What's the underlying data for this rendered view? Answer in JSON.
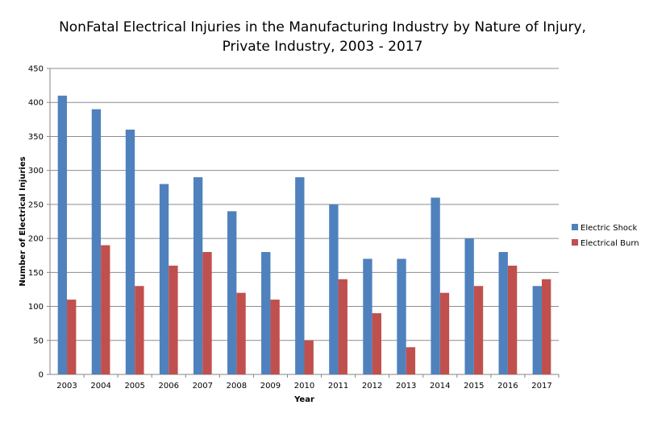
{
  "chart_data": {
    "type": "bar",
    "title": "NonFatal Electrical Injuries in the Manufacturing Industry by Nature of Injury, Private Industry, 2003 - 2017",
    "xlabel": "Year",
    "ylabel": "Number of Electrical Injuries",
    "ylim": [
      0,
      450
    ],
    "yticks": [
      "0",
      "50",
      "100",
      "150",
      "200",
      "250",
      "300",
      "350",
      "400",
      "450"
    ],
    "grid": true,
    "legend_position": "right",
    "categories": [
      "2003",
      "2004",
      "2005",
      "2006",
      "2007",
      "2008",
      "2009",
      "2010",
      "2011",
      "2012",
      "2013",
      "2014",
      "2015",
      "2016",
      "2017"
    ],
    "series": [
      {
        "name": "Electric Shock",
        "color": "#4f81bd",
        "values": [
          410,
          390,
          360,
          280,
          290,
          240,
          180,
          290,
          250,
          170,
          170,
          260,
          200,
          180,
          130
        ]
      },
      {
        "name": "Electrical Burn",
        "color": "#c0504d",
        "values": [
          110,
          190,
          130,
          160,
          180,
          120,
          110,
          50,
          140,
          90,
          40,
          120,
          130,
          160,
          140
        ]
      }
    ]
  }
}
